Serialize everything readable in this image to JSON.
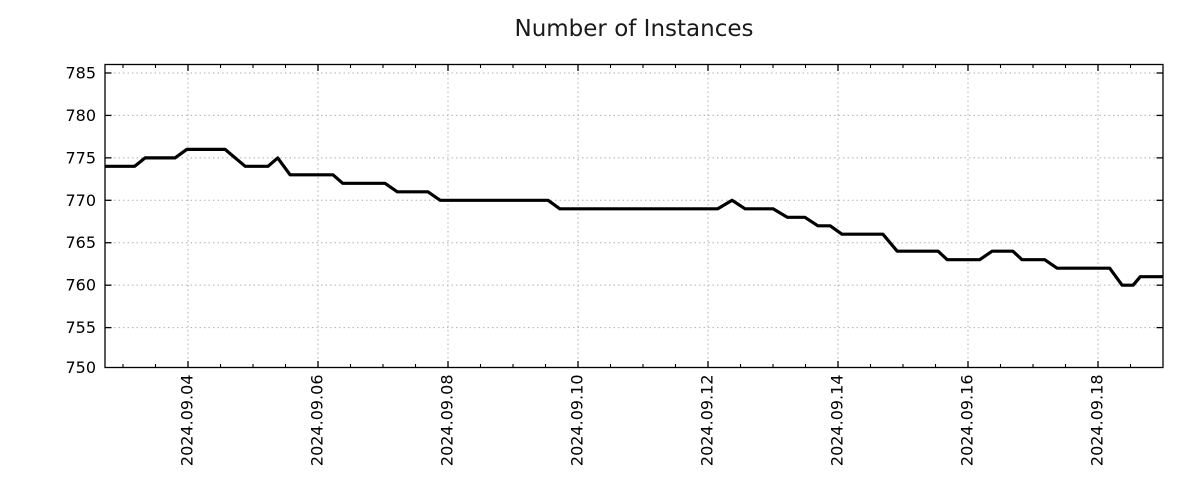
{
  "page": {
    "background": "#ffffff"
  },
  "chart_data": {
    "type": "line",
    "title": "Number of Instances",
    "grid": {
      "style": "dotted",
      "color": "#b0b0b0",
      "enabled": true
    },
    "legend": "none",
    "frame_color": "#000000",
    "x_axis": {
      "label": "",
      "t_units": "days since 2024.09.04",
      "range_days": [
        -1.277,
        15.0
      ],
      "major_ticks_days": [
        0,
        2,
        4,
        6,
        8,
        10,
        12,
        14
      ],
      "major_tick_labels": [
        "2024.09.04",
        "2024.09.06",
        "2024.09.08",
        "2024.09.10",
        "2024.09.12",
        "2024.09.14",
        "2024.09.16",
        "2024.09.18"
      ],
      "minor_tick_step_days": 0.5,
      "tick_label_rotation_deg": -90
    },
    "y_axis": {
      "label": "",
      "range": [
        750.3,
        786.0
      ],
      "major_ticks": [
        750,
        755,
        760,
        765,
        770,
        775,
        780,
        785
      ]
    },
    "series": [
      {
        "name": "Number of Instances",
        "color": "#000000",
        "line_width": 3.2,
        "points_t_days_value": [
          [
            -1.277,
            774
          ],
          [
            -0.82,
            774
          ],
          [
            -0.66,
            775
          ],
          [
            -0.2,
            775
          ],
          [
            -0.02,
            776
          ],
          [
            0.57,
            776
          ],
          [
            0.88,
            774
          ],
          [
            1.23,
            774
          ],
          [
            1.38,
            775
          ],
          [
            1.57,
            773
          ],
          [
            2.23,
            773
          ],
          [
            2.38,
            772
          ],
          [
            3.03,
            772
          ],
          [
            3.22,
            771
          ],
          [
            3.69,
            771
          ],
          [
            3.88,
            770
          ],
          [
            5.54,
            770
          ],
          [
            5.72,
            769
          ],
          [
            8.15,
            769
          ],
          [
            8.37,
            770
          ],
          [
            8.57,
            769
          ],
          [
            9.0,
            769
          ],
          [
            9.22,
            768
          ],
          [
            9.49,
            768
          ],
          [
            9.69,
            767
          ],
          [
            9.88,
            767
          ],
          [
            10.06,
            766
          ],
          [
            10.69,
            766
          ],
          [
            10.91,
            764
          ],
          [
            11.54,
            764
          ],
          [
            11.68,
            763
          ],
          [
            12.18,
            763
          ],
          [
            12.37,
            764
          ],
          [
            12.69,
            764
          ],
          [
            12.83,
            763
          ],
          [
            13.18,
            763
          ],
          [
            13.37,
            762
          ],
          [
            14.18,
            762
          ],
          [
            14.37,
            760
          ],
          [
            14.54,
            760
          ],
          [
            14.65,
            761
          ],
          [
            15.0,
            761
          ]
        ]
      }
    ]
  }
}
